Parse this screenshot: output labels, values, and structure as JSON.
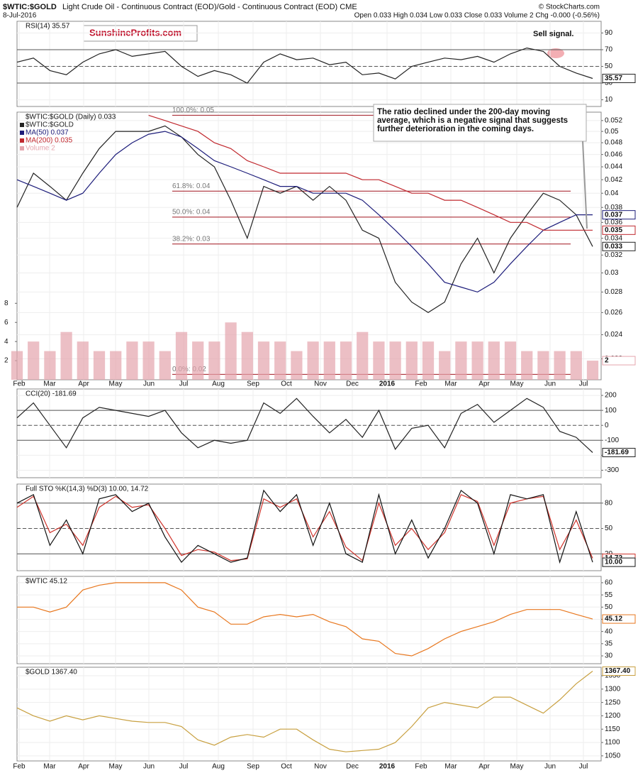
{
  "header": {
    "symbol": "$WTIC:$GOLD",
    "description": "Light Crude Oil - Continuous Contract (EOD)/Gold - Continuous Contract (EOD) CME",
    "date": "8-Jul-2016",
    "quote": "Open 0.033 High 0.034 Low 0.033 Close 0.033 Volume 2 Chg -0.000 (-0.56%)",
    "copyright": "© StockCharts.com",
    "watermark": "SunshineProfits.com"
  },
  "x_labels": [
    "Feb",
    "Mar",
    "Apr",
    "May",
    "Jun",
    "Jul",
    "Aug",
    "Sep",
    "Oct",
    "Nov",
    "Dec",
    "2016",
    "Feb",
    "Mar",
    "Apr",
    "May",
    "Jun",
    "Jul"
  ],
  "chart_data": [
    {
      "type": "line",
      "title": "RSI(14) 35.57",
      "ylim": [
        2,
        104
      ],
      "yticks": [
        90,
        70,
        50,
        30,
        10
      ],
      "reference_lines": [
        {
          "value": 70,
          "style": "solid"
        },
        {
          "value": 50,
          "style": "dashed"
        },
        {
          "value": 30,
          "style": "solid"
        }
      ],
      "annotations": [
        "Sell signal."
      ],
      "series": [
        {
          "name": "RSI(14)",
          "color": "#222222",
          "values": [
            55,
            60,
            45,
            40,
            55,
            65,
            70,
            62,
            65,
            68,
            50,
            38,
            45,
            40,
            30,
            55,
            65,
            58,
            60,
            52,
            55,
            40,
            42,
            35,
            50,
            55,
            60,
            58,
            62,
            55,
            65,
            72,
            68,
            50,
            42,
            35.57
          ]
        }
      ]
    },
    {
      "type": "line",
      "title": "$WTIC:$GOLD (Daily) 0.033",
      "log_scale": true,
      "ylim": [
        0.0204,
        0.0536
      ],
      "yticks": [
        0.052,
        0.05,
        0.048,
        0.046,
        0.044,
        0.042,
        0.04,
        0.038,
        0.036,
        0.034,
        0.032,
        0.03,
        0.028,
        0.026,
        0.024,
        0.022
      ],
      "y2lim": [
        0,
        28
      ],
      "y2ticks": [
        2,
        4,
        6,
        8
      ],
      "levels": [
        {
          "value": 0.053,
          "label": "100.0%: 0.05"
        },
        {
          "value": 0.0403,
          "label": "61.8%: 0.04"
        },
        {
          "value": 0.0367,
          "label": "50.0%: 0.04"
        },
        {
          "value": 0.0333,
          "label": "38.2%: 0.03"
        },
        {
          "value": 0.0208,
          "label": "0.0%: 0.02"
        }
      ],
      "annotations": [
        "The ratio declined under the 200-day moving average, which is a negative signal that suggests further deterioration in the coming days."
      ],
      "series": [
        {
          "name": "$WTIC:$GOLD",
          "color": "#222222",
          "values": [
            0.038,
            0.043,
            0.041,
            0.039,
            0.043,
            0.047,
            0.05,
            0.05,
            0.05,
            0.051,
            0.049,
            0.046,
            0.044,
            0.039,
            0.034,
            0.041,
            0.04,
            0.041,
            0.039,
            0.041,
            0.039,
            0.035,
            0.034,
            0.029,
            0.027,
            0.026,
            0.027,
            0.031,
            0.034,
            0.03,
            0.034,
            0.037,
            0.04,
            0.039,
            0.037,
            0.033
          ]
        },
        {
          "name": "MA(50) 0.037",
          "color": "#1c1c7a",
          "values": [
            0.042,
            0.041,
            0.04,
            0.039,
            0.04,
            0.043,
            0.046,
            0.048,
            0.0495,
            0.05,
            0.049,
            0.047,
            0.045,
            0.044,
            0.043,
            0.042,
            0.041,
            0.041,
            0.04,
            0.04,
            0.04,
            0.039,
            0.037,
            0.035,
            0.033,
            0.031,
            0.029,
            0.0285,
            0.028,
            0.029,
            0.031,
            0.033,
            0.035,
            0.036,
            0.037,
            0.037
          ]
        },
        {
          "name": "MA(200) 0.035",
          "color": "#c0282e",
          "values": [
            null,
            null,
            null,
            null,
            null,
            null,
            null,
            null,
            0.053,
            0.052,
            0.051,
            0.05,
            0.048,
            0.047,
            0.045,
            0.044,
            0.043,
            0.043,
            0.043,
            0.043,
            0.043,
            0.042,
            0.042,
            0.041,
            0.04,
            0.04,
            0.039,
            0.039,
            0.038,
            0.037,
            0.036,
            0.036,
            0.035,
            0.035,
            0.035,
            0.035
          ]
        },
        {
          "name": "Volume 2",
          "color": "#e4a4ac",
          "type": "bar",
          "axis": "y2",
          "values": [
            3,
            4,
            3,
            5,
            4,
            3,
            3,
            4,
            4,
            3,
            5,
            4,
            4,
            6,
            5,
            4,
            4,
            3,
            4,
            4,
            4,
            5,
            4,
            4,
            4,
            4,
            3,
            4,
            4,
            4,
            4,
            3,
            3,
            3,
            3,
            2
          ]
        }
      ]
    },
    {
      "type": "line",
      "title": "CCI(20) -181.69",
      "ylim": [
        -350,
        243
      ],
      "yticks": [
        200,
        100,
        0,
        -100,
        -200,
        -300
      ],
      "reference_lines": [
        {
          "value": 100,
          "style": "solid"
        },
        {
          "value": 0,
          "style": "dashed"
        },
        {
          "value": -100,
          "style": "solid"
        }
      ],
      "series": [
        {
          "name": "CCI(20)",
          "color": "#222222",
          "values": [
            50,
            150,
            0,
            -150,
            50,
            120,
            100,
            80,
            60,
            100,
            -50,
            -150,
            -100,
            -120,
            -100,
            150,
            80,
            180,
            60,
            -50,
            40,
            -80,
            100,
            -160,
            -20,
            0,
            -150,
            80,
            140,
            20,
            100,
            180,
            120,
            -40,
            -80,
            -181.69
          ]
        }
      ]
    },
    {
      "type": "line",
      "title": "Full STO %K(14,3) %D(3) 10.00, 14.72",
      "ylim": [
        0,
        102.5
      ],
      "yticks": [
        80,
        50,
        20
      ],
      "reference_lines": [
        {
          "value": 80,
          "style": "solid"
        },
        {
          "value": 50,
          "style": "dashed"
        },
        {
          "value": 20,
          "style": "solid"
        }
      ],
      "series": [
        {
          "name": "%D(3)",
          "color": "#d0342c",
          "values": [
            75,
            88,
            45,
            55,
            30,
            75,
            88,
            75,
            78,
            50,
            18,
            25,
            22,
            12,
            14,
            85,
            75,
            85,
            40,
            70,
            28,
            12,
            80,
            30,
            50,
            25,
            45,
            90,
            82,
            30,
            80,
            85,
            88,
            25,
            60,
            14.72
          ]
        },
        {
          "name": "%K(14,3)",
          "color": "#111111",
          "values": [
            80,
            90,
            30,
            60,
            20,
            85,
            90,
            70,
            80,
            40,
            10,
            30,
            20,
            10,
            15,
            95,
            70,
            90,
            30,
            80,
            20,
            10,
            90,
            20,
            60,
            15,
            50,
            95,
            80,
            20,
            90,
            85,
            90,
            10,
            70,
            10
          ],
          "value_labels": [
            null,
            null,
            null,
            null,
            null,
            null,
            null,
            null,
            null,
            null,
            null,
            null,
            null,
            null,
            null,
            null,
            null,
            null,
            null,
            null,
            null,
            null,
            null,
            null,
            null,
            null,
            null,
            null,
            null,
            null,
            null,
            null,
            null,
            null,
            null,
            "10.00"
          ]
        }
      ]
    },
    {
      "type": "line",
      "title": "$WTIC 45.12",
      "ylim": [
        26.8,
        62.6
      ],
      "yticks": [
        60,
        55,
        50,
        45,
        40,
        35,
        30
      ],
      "series": [
        {
          "name": "$WTIC",
          "color": "#e8771e",
          "values": [
            50,
            50,
            48,
            50,
            57,
            59,
            60,
            60,
            60,
            60,
            57,
            50,
            48,
            43,
            43,
            46,
            47,
            46,
            47,
            44,
            42,
            37,
            36,
            31,
            30,
            33,
            37,
            40,
            42,
            44,
            47,
            49,
            49,
            49,
            47,
            45.12
          ]
        }
      ]
    },
    {
      "type": "line",
      "title": "$GOLD 1367.40",
      "ylim": [
        1031,
        1382
      ],
      "yticks": [
        1350,
        1300,
        1250,
        1200,
        1150,
        1100,
        1050
      ],
      "series": [
        {
          "name": "$GOLD",
          "color": "#c8a040",
          "values": [
            1230,
            1200,
            1180,
            1200,
            1185,
            1200,
            1190,
            1180,
            1175,
            1175,
            1160,
            1110,
            1090,
            1120,
            1130,
            1120,
            1150,
            1150,
            1110,
            1075,
            1065,
            1070,
            1075,
            1100,
            1160,
            1230,
            1250,
            1240,
            1230,
            1270,
            1270,
            1240,
            1210,
            1260,
            1320,
            1367.4
          ],
          "value_labels": [
            null,
            null,
            null,
            null,
            null,
            null,
            null,
            null,
            null,
            null,
            null,
            null,
            null,
            null,
            null,
            null,
            null,
            null,
            null,
            null,
            null,
            null,
            null,
            null,
            null,
            null,
            null,
            null,
            null,
            null,
            null,
            null,
            null,
            null,
            null,
            "1367.40"
          ]
        }
      ]
    }
  ]
}
